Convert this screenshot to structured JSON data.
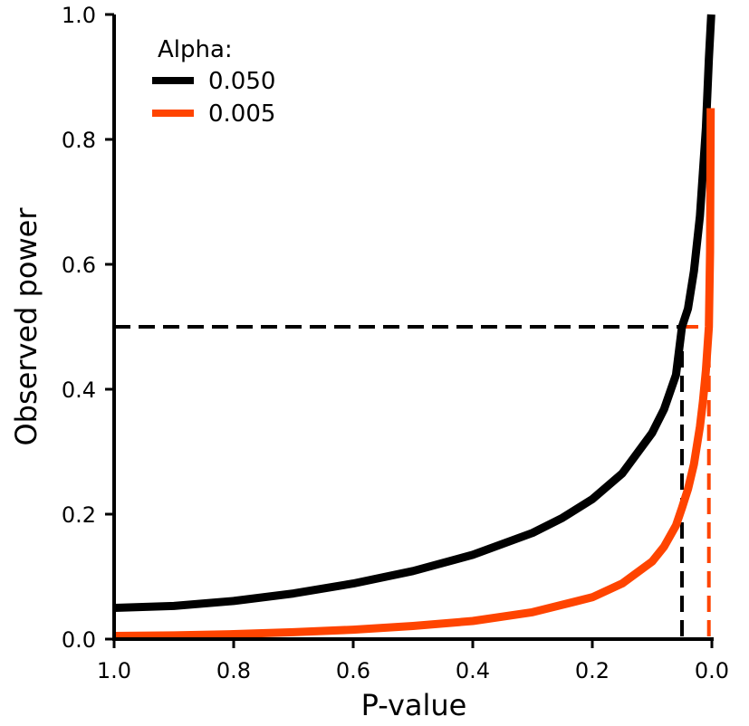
{
  "chart_data": {
    "type": "line",
    "title": "",
    "xlabel": "P-value",
    "ylabel": "Observed power",
    "xlim": [
      1.0,
      0.0
    ],
    "ylim": [
      0.0,
      1.0
    ],
    "x_reversed": true,
    "grid": false,
    "x_ticks": [
      "1.0",
      "0.8",
      "0.6",
      "0.4",
      "0.2",
      "0.0"
    ],
    "y_ticks": [
      "0.0",
      "0.2",
      "0.4",
      "0.6",
      "0.8",
      "1.0"
    ],
    "legend": {
      "title": "Alpha:",
      "placement": "top-left"
    },
    "series": [
      {
        "name": "0.050",
        "color": "#000000",
        "x": [
          1.0,
          0.9,
          0.8,
          0.7,
          0.6,
          0.5,
          0.4,
          0.3,
          0.25,
          0.2,
          0.15,
          0.1,
          0.08,
          0.06,
          0.05,
          0.04,
          0.03,
          0.02,
          0.01,
          0.005,
          0.001
        ],
        "y": [
          0.05,
          0.053,
          0.061,
          0.073,
          0.089,
          0.109,
          0.135,
          0.17,
          0.194,
          0.224,
          0.265,
          0.33,
          0.368,
          0.423,
          0.5,
          0.529,
          0.589,
          0.677,
          0.818,
          0.929,
          1.0
        ]
      },
      {
        "name": "0.005",
        "color": "#ff4400",
        "x": [
          1.0,
          0.9,
          0.8,
          0.7,
          0.6,
          0.5,
          0.4,
          0.3,
          0.2,
          0.15,
          0.1,
          0.08,
          0.06,
          0.05,
          0.04,
          0.03,
          0.02,
          0.015,
          0.01,
          0.005,
          0.003,
          0.002
        ],
        "y": [
          0.005,
          0.006,
          0.008,
          0.011,
          0.015,
          0.021,
          0.029,
          0.043,
          0.067,
          0.089,
          0.124,
          0.148,
          0.182,
          0.21,
          0.24,
          0.28,
          0.34,
          0.38,
          0.43,
          0.5,
          0.62,
          0.85
        ]
      }
    ],
    "reference_lines": [
      {
        "color": "#000000",
        "dash": true,
        "x_start": 1.0,
        "x_end": 0.05,
        "y": 0.5,
        "x": 0.05
      },
      {
        "color": "#ff4400",
        "dash": true,
        "x_start": 0.05,
        "x_end": 0.005,
        "y": 0.5,
        "x": 0.005
      }
    ]
  }
}
